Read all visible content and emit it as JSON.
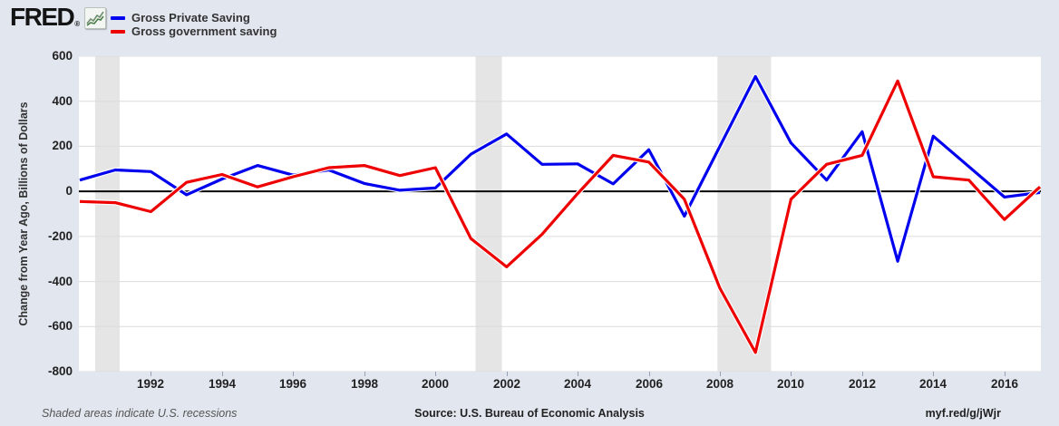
{
  "logo": {
    "text": "FRED",
    "registered": "®"
  },
  "legend": [
    {
      "label": "Gross Private Saving",
      "color": "#0000ee"
    },
    {
      "label": "Gross government saving",
      "color": "#ee0000"
    }
  ],
  "y_axis": {
    "label": "Change from Year Ago, Billions of Dollars",
    "ticks": [
      600,
      400,
      200,
      0,
      -200,
      -400,
      -600,
      -800
    ]
  },
  "x_axis": {
    "ticks": [
      1992,
      1994,
      1996,
      1998,
      2000,
      2002,
      2004,
      2006,
      2008,
      2010,
      2012,
      2014,
      2016
    ]
  },
  "footer": {
    "note": "Shaded areas indicate U.S. recessions",
    "source": "Source: U.S. Bureau of Economic Analysis",
    "link": "myf.red/g/jWjr"
  },
  "chart_data": {
    "type": "line",
    "title": "",
    "xlabel": "",
    "ylabel": "Change from Year Ago, Billions of Dollars",
    "xlim": [
      1990,
      2017
    ],
    "ylim": [
      -800,
      600
    ],
    "grid": "horizontal",
    "zero_line": true,
    "legend_position": "top-left",
    "x": [
      1990,
      1991,
      1992,
      1993,
      1994,
      1995,
      1996,
      1997,
      1998,
      1999,
      2000,
      2001,
      2002,
      2003,
      2004,
      2005,
      2006,
      2007,
      2008,
      2009,
      2010,
      2011,
      2012,
      2013,
      2014,
      2015,
      2016,
      2017
    ],
    "series": [
      {
        "name": "Gross Private Saving",
        "color": "#0000ee",
        "values": [
          50,
          95,
          88,
          -15,
          55,
          115,
          72,
          95,
          35,
          5,
          15,
          165,
          255,
          120,
          122,
          33,
          185,
          -110,
          200,
          510,
          215,
          50,
          265,
          -310,
          245,
          110,
          -25,
          -5
        ]
      },
      {
        "name": "Gross government saving",
        "color": "#ee0000",
        "values": [
          -45,
          -50,
          -90,
          40,
          75,
          20,
          65,
          105,
          115,
          70,
          105,
          -210,
          -335,
          -190,
          -10,
          160,
          130,
          -35,
          -430,
          -715,
          -35,
          120,
          160,
          490,
          65,
          50,
          -125,
          20
        ]
      }
    ],
    "recessions": [
      [
        1990.43,
        1991.12
      ],
      [
        2001.13,
        2001.87
      ],
      [
        2007.93,
        2009.44
      ]
    ],
    "recession_color": "#e5e5e5",
    "gridline_color": "#dcdcdc",
    "zero_line_color": "#000000"
  }
}
